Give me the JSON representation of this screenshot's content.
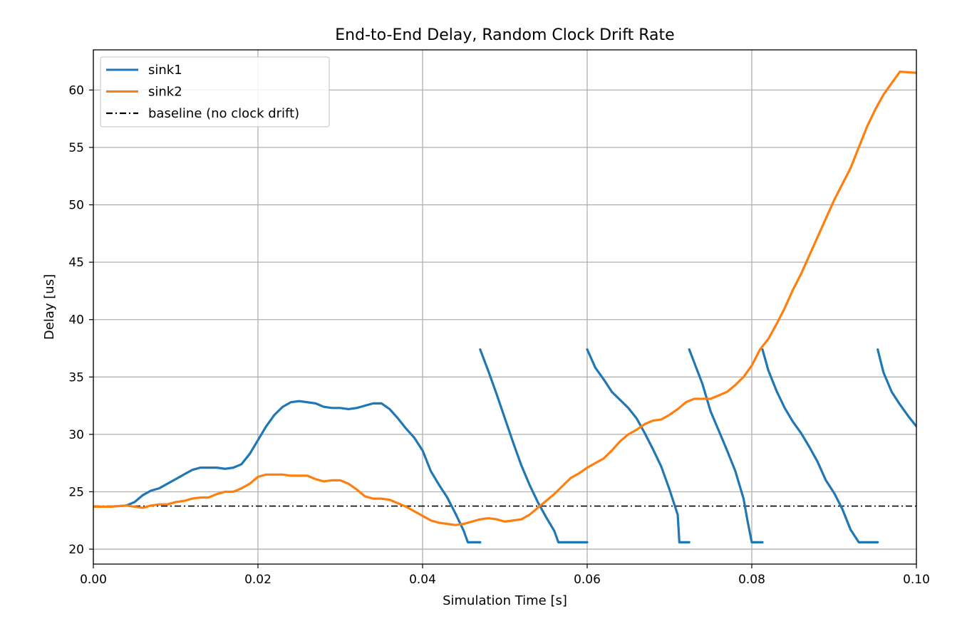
{
  "chart_data": {
    "type": "line",
    "title": "End-to-End Delay, Random Clock Drift Rate",
    "xlabel": "Simulation Time [s]",
    "ylabel": "Delay [us]",
    "xlim": [
      0.0,
      0.1
    ],
    "ylim": [
      18.7,
      63.5
    ],
    "xticks": [
      0.0,
      0.02,
      0.04,
      0.06,
      0.08,
      0.1
    ],
    "xtick_labels": [
      "0.00",
      "0.02",
      "0.04",
      "0.06",
      "0.08",
      "0.10"
    ],
    "yticks": [
      20,
      25,
      30,
      35,
      40,
      45,
      50,
      55,
      60
    ],
    "ytick_labels": [
      "20",
      "25",
      "30",
      "35",
      "40",
      "45",
      "50",
      "55",
      "60"
    ],
    "grid": true,
    "legend_position": "top-left",
    "series": [
      {
        "name": "sink1",
        "color": "#1f77b4",
        "style": "solid",
        "segments": [
          [
            [
              0.0,
              23.7
            ],
            [
              0.002,
              23.7
            ],
            [
              0.004,
              23.8
            ],
            [
              0.005,
              24.1
            ],
            [
              0.006,
              24.7
            ],
            [
              0.007,
              25.1
            ],
            [
              0.008,
              25.3
            ],
            [
              0.009,
              25.7
            ],
            [
              0.01,
              26.1
            ],
            [
              0.011,
              26.5
            ],
            [
              0.012,
              26.9
            ],
            [
              0.013,
              27.1
            ],
            [
              0.015,
              27.1
            ],
            [
              0.016,
              27.0
            ],
            [
              0.017,
              27.1
            ],
            [
              0.018,
              27.4
            ],
            [
              0.019,
              28.3
            ],
            [
              0.02,
              29.5
            ],
            [
              0.021,
              30.7
            ],
            [
              0.022,
              31.7
            ],
            [
              0.023,
              32.4
            ],
            [
              0.024,
              32.8
            ],
            [
              0.025,
              32.9
            ],
            [
              0.026,
              32.8
            ],
            [
              0.027,
              32.7
            ],
            [
              0.028,
              32.4
            ],
            [
              0.029,
              32.3
            ],
            [
              0.03,
              32.3
            ],
            [
              0.031,
              32.2
            ],
            [
              0.032,
              32.3
            ],
            [
              0.033,
              32.5
            ],
            [
              0.034,
              32.7
            ],
            [
              0.035,
              32.7
            ],
            [
              0.036,
              32.2
            ],
            [
              0.037,
              31.4
            ],
            [
              0.038,
              30.5
            ],
            [
              0.039,
              29.7
            ],
            [
              0.04,
              28.6
            ],
            [
              0.041,
              26.8
            ],
            [
              0.042,
              25.6
            ],
            [
              0.043,
              24.5
            ],
            [
              0.044,
              23.1
            ],
            [
              0.045,
              21.6
            ],
            [
              0.0455,
              20.6
            ],
            [
              0.047,
              20.6
            ]
          ],
          [
            [
              0.047,
              37.4
            ],
            [
              0.048,
              35.5
            ],
            [
              0.049,
              33.5
            ],
            [
              0.05,
              31.4
            ],
            [
              0.051,
              29.3
            ],
            [
              0.052,
              27.3
            ],
            [
              0.053,
              25.6
            ],
            [
              0.054,
              24.1
            ],
            [
              0.055,
              22.8
            ],
            [
              0.056,
              21.6
            ],
            [
              0.0565,
              20.6
            ],
            [
              0.06,
              20.6
            ]
          ],
          [
            [
              0.06,
              37.4
            ],
            [
              0.061,
              35.8
            ],
            [
              0.062,
              34.8
            ],
            [
              0.063,
              33.7
            ],
            [
              0.064,
              33.0
            ],
            [
              0.065,
              32.3
            ],
            [
              0.066,
              31.4
            ],
            [
              0.067,
              30.1
            ],
            [
              0.068,
              28.7
            ],
            [
              0.069,
              27.2
            ],
            [
              0.07,
              25.2
            ],
            [
              0.071,
              23.0
            ],
            [
              0.0712,
              20.6
            ],
            [
              0.0724,
              20.6
            ]
          ],
          [
            [
              0.0724,
              37.4
            ],
            [
              0.074,
              34.4
            ],
            [
              0.075,
              32.0
            ],
            [
              0.076,
              30.3
            ],
            [
              0.077,
              28.6
            ],
            [
              0.078,
              26.8
            ],
            [
              0.079,
              24.4
            ],
            [
              0.0795,
              22.4
            ],
            [
              0.08,
              20.6
            ],
            [
              0.0813,
              20.6
            ]
          ],
          [
            [
              0.0813,
              37.4
            ],
            [
              0.082,
              35.6
            ],
            [
              0.083,
              33.8
            ],
            [
              0.084,
              32.3
            ],
            [
              0.085,
              31.1
            ],
            [
              0.086,
              30.1
            ],
            [
              0.087,
              28.9
            ],
            [
              0.088,
              27.6
            ],
            [
              0.089,
              26.0
            ],
            [
              0.09,
              24.9
            ],
            [
              0.091,
              23.5
            ],
            [
              0.092,
              21.7
            ],
            [
              0.093,
              20.6
            ],
            [
              0.0953,
              20.6
            ]
          ],
          [
            [
              0.0953,
              37.4
            ],
            [
              0.096,
              35.4
            ],
            [
              0.097,
              33.7
            ],
            [
              0.098,
              32.6
            ],
            [
              0.099,
              31.6
            ],
            [
              0.1,
              30.7
            ]
          ]
        ]
      },
      {
        "name": "sink2",
        "color": "#ff7f0e",
        "style": "solid",
        "segments": [
          [
            [
              0.0,
              23.7
            ],
            [
              0.002,
              23.7
            ],
            [
              0.004,
              23.8
            ],
            [
              0.005,
              23.7
            ],
            [
              0.006,
              23.6
            ],
            [
              0.007,
              23.8
            ],
            [
              0.008,
              23.9
            ],
            [
              0.009,
              23.9
            ],
            [
              0.01,
              24.1
            ],
            [
              0.011,
              24.2
            ],
            [
              0.012,
              24.4
            ],
            [
              0.013,
              24.5
            ],
            [
              0.014,
              24.5
            ],
            [
              0.015,
              24.8
            ],
            [
              0.016,
              25.0
            ],
            [
              0.017,
              25.0
            ],
            [
              0.018,
              25.3
            ],
            [
              0.019,
              25.7
            ],
            [
              0.02,
              26.3
            ],
            [
              0.021,
              26.5
            ],
            [
              0.022,
              26.5
            ],
            [
              0.023,
              26.5
            ],
            [
              0.024,
              26.4
            ],
            [
              0.025,
              26.4
            ],
            [
              0.026,
              26.4
            ],
            [
              0.027,
              26.1
            ],
            [
              0.028,
              25.9
            ],
            [
              0.029,
              26.0
            ],
            [
              0.03,
              26.0
            ],
            [
              0.031,
              25.7
            ],
            [
              0.032,
              25.2
            ],
            [
              0.033,
              24.6
            ],
            [
              0.034,
              24.4
            ],
            [
              0.035,
              24.4
            ],
            [
              0.036,
              24.3
            ],
            [
              0.037,
              24.0
            ],
            [
              0.038,
              23.7
            ],
            [
              0.039,
              23.3
            ],
            [
              0.04,
              22.9
            ],
            [
              0.041,
              22.5
            ],
            [
              0.042,
              22.3
            ],
            [
              0.043,
              22.2
            ],
            [
              0.044,
              22.1
            ],
            [
              0.045,
              22.2
            ],
            [
              0.046,
              22.4
            ],
            [
              0.047,
              22.6
            ],
            [
              0.048,
              22.7
            ],
            [
              0.049,
              22.6
            ],
            [
              0.05,
              22.4
            ],
            [
              0.051,
              22.5
            ],
            [
              0.052,
              22.6
            ],
            [
              0.053,
              23.0
            ],
            [
              0.054,
              23.6
            ],
            [
              0.055,
              24.2
            ],
            [
              0.056,
              24.8
            ],
            [
              0.057,
              25.5
            ],
            [
              0.058,
              26.2
            ],
            [
              0.059,
              26.6
            ],
            [
              0.06,
              27.1
            ],
            [
              0.061,
              27.5
            ],
            [
              0.062,
              27.9
            ],
            [
              0.063,
              28.6
            ],
            [
              0.064,
              29.4
            ],
            [
              0.065,
              30.0
            ],
            [
              0.066,
              30.4
            ],
            [
              0.067,
              30.9
            ],
            [
              0.068,
              31.2
            ],
            [
              0.069,
              31.3
            ],
            [
              0.07,
              31.7
            ],
            [
              0.071,
              32.2
            ],
            [
              0.072,
              32.8
            ],
            [
              0.073,
              33.1
            ],
            [
              0.074,
              33.1
            ],
            [
              0.075,
              33.1
            ],
            [
              0.076,
              33.4
            ],
            [
              0.077,
              33.7
            ],
            [
              0.078,
              34.3
            ],
            [
              0.079,
              35.0
            ],
            [
              0.08,
              36.0
            ],
            [
              0.081,
              37.4
            ],
            [
              0.082,
              38.3
            ],
            [
              0.083,
              39.6
            ],
            [
              0.084,
              41.0
            ],
            [
              0.085,
              42.6
            ],
            [
              0.086,
              44.0
            ],
            [
              0.087,
              45.6
            ],
            [
              0.088,
              47.2
            ],
            [
              0.089,
              48.8
            ],
            [
              0.09,
              50.4
            ],
            [
              0.091,
              51.8
            ],
            [
              0.092,
              53.2
            ],
            [
              0.093,
              55.0
            ],
            [
              0.094,
              56.8
            ],
            [
              0.095,
              58.3
            ],
            [
              0.096,
              59.6
            ],
            [
              0.097,
              60.6
            ],
            [
              0.098,
              61.6
            ],
            [
              0.1,
              61.5
            ]
          ]
        ]
      },
      {
        "name": "baseline (no clock drift)",
        "color": "#000000",
        "style": "dashdot",
        "segments": [
          [
            [
              0.0,
              23.75
            ],
            [
              0.1,
              23.75
            ]
          ]
        ]
      }
    ]
  }
}
